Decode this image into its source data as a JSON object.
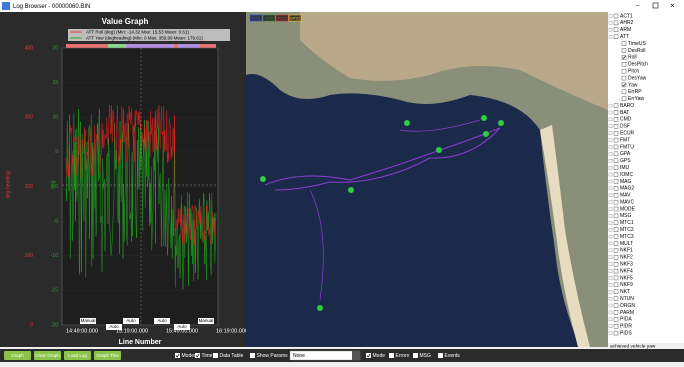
{
  "window": {
    "title": "Log Browser - 00000060.BIN"
  },
  "graph": {
    "title": "Value Graph",
    "legend": [
      "ATT Roll (deg)  (Min: -14.32 Max: 15.53 Mean: 0.61)",
      "ATT Yaw (degheading)  (Min: 0 Max: 359.99 Mean: 179.61)"
    ],
    "y1_label": "deg heading",
    "y2_label": "deg",
    "y1_ticks": [
      "400",
      "300",
      "200",
      "100",
      "0"
    ],
    "y2_ticks": [
      "20",
      "15",
      "10",
      "5",
      "0",
      "-5",
      "-10",
      "-15",
      "-20"
    ],
    "x_ticks": [
      "14:49:00.000",
      "15:19:00.000",
      "15:49:00.000",
      "16:19:00.000"
    ],
    "x_label": "Line Number",
    "modes": [
      "Manual",
      "Auto",
      "Auto",
      "Auto",
      "Auto",
      "Manual"
    ]
  },
  "map": {
    "legend": [
      "POS",
      "GPS",
      "POS",
      "GPS2"
    ]
  },
  "tree": {
    "items": [
      {
        "label": "ACT1"
      },
      {
        "label": "AHR2"
      },
      {
        "label": "ARM"
      },
      {
        "label": "ATT"
      },
      {
        "label": "TimeUS",
        "child": true
      },
      {
        "label": "DesRoll",
        "child": true
      },
      {
        "label": "Roll",
        "child": true,
        "checked": true
      },
      {
        "label": "DesPitch",
        "child": true
      },
      {
        "label": "Pitch",
        "child": true
      },
      {
        "label": "DesYaw",
        "child": true
      },
      {
        "label": "Yaw",
        "child": true,
        "checked": true
      },
      {
        "label": "ErrRP",
        "child": true
      },
      {
        "label": "ErrYaw",
        "child": true
      },
      {
        "label": "BARO"
      },
      {
        "label": "BAT"
      },
      {
        "label": "CMD"
      },
      {
        "label": "DSF"
      },
      {
        "label": "ECUR"
      },
      {
        "label": "FMT"
      },
      {
        "label": "FMTU"
      },
      {
        "label": "GPA"
      },
      {
        "label": "GPS"
      },
      {
        "label": "IMU"
      },
      {
        "label": "IOMC"
      },
      {
        "label": "MAG"
      },
      {
        "label": "MAG2"
      },
      {
        "label": "MAV"
      },
      {
        "label": "MAVC"
      },
      {
        "label": "MODE"
      },
      {
        "label": "MSG"
      },
      {
        "label": "MTC1"
      },
      {
        "label": "MTC2"
      },
      {
        "label": "MTC3"
      },
      {
        "label": "MULT"
      },
      {
        "label": "NKF1"
      },
      {
        "label": "NKF2"
      },
      {
        "label": "NKF3"
      },
      {
        "label": "NKF4"
      },
      {
        "label": "NKF5"
      },
      {
        "label": "NKF9"
      },
      {
        "label": "NKT"
      },
      {
        "label": "NTUN"
      },
      {
        "label": "ORGN"
      },
      {
        "label": "PARM"
      },
      {
        "label": "PIDA"
      },
      {
        "label": "PIDR"
      },
      {
        "label": "PIDS"
      }
    ],
    "status": "achieved vehicle yaw"
  },
  "toolbar": {
    "buttons": [
      "Graph",
      "Clear Graph",
      "Load Log",
      "Graph This"
    ],
    "checks": [
      {
        "label": "Modes",
        "checked": true
      },
      {
        "label": "Time",
        "checked": true
      },
      {
        "label": "Data Table"
      },
      {
        "label": "Show Params"
      }
    ],
    "combo": "None",
    "checks2": [
      {
        "label": "Mode",
        "checked": true
      },
      {
        "label": "Errors"
      },
      {
        "label": "MSG"
      },
      {
        "label": "Events"
      }
    ]
  }
}
